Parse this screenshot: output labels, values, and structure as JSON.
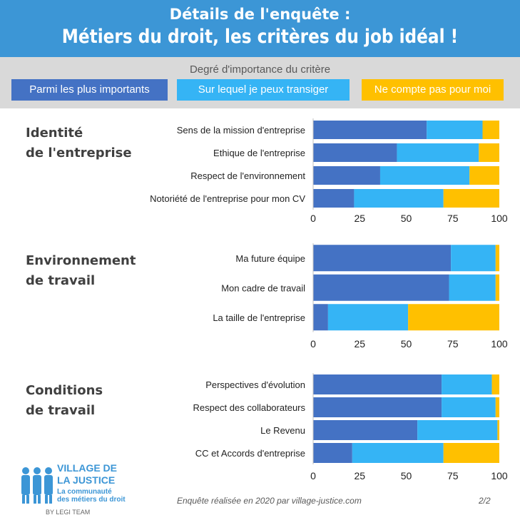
{
  "header": {
    "line1": "Détails  de l'enquête :",
    "line2": "Métiers du droit, les critères du job idéal !"
  },
  "legend": {
    "title": "Degré d'importance du critère",
    "items": [
      {
        "label": "Parmi les plus importants",
        "color": "#4472c4"
      },
      {
        "label": "Sur lequel je peux transiger",
        "color": "#35b4f5"
      },
      {
        "label": "Ne compte pas pour moi",
        "color": "#ffc000"
      }
    ]
  },
  "sections": [
    {
      "title_line1": "Identité",
      "title_line2": "de l'entreprise"
    },
    {
      "title_line1": "Environnement",
      "title_line2": "de travail"
    },
    {
      "title_line1": "Conditions",
      "title_line2": "de travail"
    }
  ],
  "chart_data": [
    {
      "type": "bar",
      "orientation": "horizontal",
      "stacked": true,
      "title": "Identité de l'entreprise",
      "categories": [
        "Sens de la mission d'entreprise",
        "Ethique de l'entreprise",
        "Respect de l'environnement",
        "Notoriété de l'entreprise pour mon CV"
      ],
      "series": [
        {
          "name": "Parmi les plus importants",
          "values": [
            61,
            45,
            36,
            22
          ]
        },
        {
          "name": "Sur lequel je peux transiger",
          "values": [
            30,
            44,
            48,
            48
          ]
        },
        {
          "name": "Ne compte pas pour moi",
          "values": [
            9,
            11,
            16,
            30
          ]
        }
      ],
      "xlim": [
        0,
        100
      ],
      "xticks": [
        "0",
        "25",
        "50",
        "75",
        "100"
      ],
      "grid": false
    },
    {
      "type": "bar",
      "orientation": "horizontal",
      "stacked": true,
      "title": "Environnement de travail",
      "categories": [
        "Ma future équipe",
        "Mon cadre de travail",
        "La taille de l'entreprise"
      ],
      "series": [
        {
          "name": "Parmi les plus importants",
          "values": [
            74,
            73,
            8
          ]
        },
        {
          "name": "Sur lequel je peux transiger",
          "values": [
            24,
            25,
            43
          ]
        },
        {
          "name": "Ne compte pas pour moi",
          "values": [
            2,
            2,
            49
          ]
        }
      ],
      "xlim": [
        0,
        100
      ],
      "xticks": [
        "0",
        "25",
        "50",
        "75",
        "100"
      ],
      "grid": false
    },
    {
      "type": "bar",
      "orientation": "horizontal",
      "stacked": true,
      "title": "Conditions de travail",
      "categories": [
        "Perspectives d'évolution",
        "Respect des collaborateurs",
        "Le Revenu",
        "CC et Accords d'entreprise"
      ],
      "series": [
        {
          "name": "Parmi les plus importants",
          "values": [
            69,
            69,
            56,
            21
          ]
        },
        {
          "name": "Sur lequel je peux transiger",
          "values": [
            27,
            29,
            43,
            49
          ]
        },
        {
          "name": "Ne compte pas pour moi",
          "values": [
            4,
            2,
            1,
            30
          ]
        }
      ],
      "xlim": [
        0,
        100
      ],
      "xticks": [
        "0",
        "25",
        "50",
        "75",
        "100"
      ],
      "grid": false
    }
  ],
  "footer": {
    "note": "Enquête réalisée en 2020 par village-justice.com",
    "page": "2/2"
  },
  "logo": {
    "line1": "VILLAGE DE",
    "line2": "LA JUSTICE",
    "tagline1": "La communauté",
    "tagline2": "des métiers du droit",
    "byline": "BY LEGI TEAM"
  }
}
